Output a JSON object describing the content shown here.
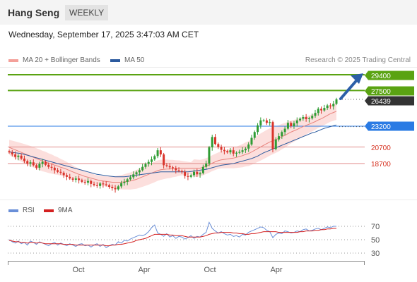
{
  "header": {
    "symbol": "Hang Seng",
    "period": "WEEKLY"
  },
  "datetime": "Wednesday, September 17, 2025 3:47:03 AM CET",
  "legend": [
    {
      "label": "MA 20 + Bollinger Bands",
      "color": "#f4a09a"
    },
    {
      "label": "MA 50",
      "color": "#2b5a9e"
    }
  ],
  "copyright": "Research © 2025 Trading Central",
  "rsi_legend": [
    {
      "label": "RSI",
      "color": "#6a8fd8"
    },
    {
      "label": "9MA",
      "color": "#d42020"
    }
  ],
  "chart_data": [
    {
      "type": "candlestick",
      "title": "Hang Seng",
      "x_tick_labels": [
        "Oct",
        "Apr",
        "Oct",
        "Apr"
      ],
      "price_labels": [
        {
          "value": "29400",
          "style": "green-badge",
          "color": "#5aa312"
        },
        {
          "value": "27500",
          "style": "green-badge",
          "color": "#5aa312"
        },
        {
          "value": "26439",
          "style": "current-price",
          "color": "#333333"
        },
        {
          "value": "23200",
          "style": "blue-badge",
          "color": "#2a7be4"
        },
        {
          "value": "20700",
          "style": "red-text",
          "color": "#d6301f"
        },
        {
          "value": "18700",
          "style": "red-text",
          "color": "#d6301f"
        }
      ],
      "levels": [
        {
          "value": 29400,
          "kind": "resistance-target",
          "color": "#5aa312"
        },
        {
          "value": 27500,
          "kind": "resistance-target",
          "color": "#5aa312"
        },
        {
          "value": 23200,
          "kind": "pivot",
          "color": "#2a7be4"
        },
        {
          "value": 20700,
          "kind": "support",
          "color": "#e08a88"
        },
        {
          "value": 18700,
          "kind": "support",
          "color": "#e08a88"
        }
      ],
      "current_price": 26439,
      "ylim": [
        15500,
        30200
      ],
      "arrow": "up",
      "closes": [
        20050,
        19800,
        19500,
        19650,
        19300,
        19000,
        18700,
        18850,
        18500,
        18200,
        18650,
        18900,
        18550,
        18300,
        18200,
        17900,
        17700,
        17600,
        17300,
        17100,
        16900,
        16750,
        16900,
        16700,
        16500,
        16400,
        16600,
        16250,
        16100,
        16000,
        16300,
        16200,
        16100,
        15900,
        15750,
        15600,
        15950,
        16350,
        16500,
        16800,
        17050,
        17400,
        17650,
        17900,
        18300,
        18650,
        18900,
        19200,
        19600,
        20300,
        19800,
        18500,
        18400,
        18250,
        18150,
        17900,
        17800,
        17700,
        17200,
        17100,
        17300,
        17700,
        17400,
        17550,
        18300,
        18700,
        20650,
        21900,
        21050,
        20700,
        20350,
        20200,
        20050,
        20300,
        19900,
        20000,
        20100,
        20300,
        20500,
        21000,
        21800,
        22500,
        23300,
        23900,
        23900,
        23600,
        23700,
        20450,
        21600,
        22000,
        22500,
        22900,
        23600,
        23200,
        23550,
        23900,
        24100,
        24300,
        24050,
        24150,
        24450,
        24800,
        25300,
        25100,
        25400,
        25700,
        25600,
        25900,
        26439
      ],
      "ma20": [
        20650,
        20500,
        20350,
        20200,
        20050,
        19900,
        19750,
        19600,
        19450,
        19300,
        19150,
        19000,
        18900,
        18750,
        18650,
        18500,
        18400,
        18250,
        18150,
        18000,
        17850,
        17700,
        17550,
        17400,
        17300,
        17150,
        17050,
        16950,
        16850,
        16750,
        16650,
        16600,
        16550,
        16500,
        16450,
        16450,
        16450,
        16450,
        16500,
        16550,
        16600,
        16700,
        16800,
        16950,
        17100,
        17250,
        17400,
        17550,
        17700,
        17850,
        17950,
        18000,
        18050,
        18050,
        18100,
        18100,
        18150,
        18150,
        18150,
        18150,
        18150,
        18150,
        18150,
        18150,
        18250,
        18400,
        18550,
        18750,
        18900,
        19050,
        19150,
        19200,
        19250,
        19300,
        19350,
        19450,
        19550,
        19650,
        19800,
        19900,
        20100,
        20300,
        20500,
        20700,
        20900,
        21100,
        21300,
        21450,
        21600,
        21750,
        21950,
        22100,
        22300,
        22500,
        22650,
        22800,
        23000,
        23150,
        23300,
        23450,
        23600,
        23750,
        23950,
        24100,
        24300,
        24500,
        24700,
        24850,
        25000
      ],
      "ma50": [
        20100,
        20050,
        20000,
        19950,
        19900,
        19800,
        19700,
        19600,
        19500,
        19400,
        19300,
        19200,
        19100,
        19000,
        18900,
        18800,
        18700,
        18600,
        18500,
        18400,
        18300,
        18200,
        18100,
        18000,
        17900,
        17800,
        17700,
        17600,
        17500,
        17400,
        17350,
        17300,
        17250,
        17200,
        17150,
        17100,
        17100,
        17100,
        17100,
        17150,
        17200,
        17250,
        17300,
        17350,
        17400,
        17450,
        17500,
        17550,
        17600,
        17650,
        17700,
        17700,
        17700,
        17700,
        17700,
        17700,
        17700,
        17700,
        17700,
        17700,
        17750,
        17800,
        17850,
        17900,
        17950,
        18000,
        18100,
        18200,
        18300,
        18400,
        18500,
        18550,
        18600,
        18650,
        18700,
        18800,
        18900,
        19000,
        19100,
        19200,
        19300,
        19450,
        19600,
        19800,
        20000,
        20150,
        20300,
        20450,
        20600,
        20750,
        20900,
        21050,
        21200,
        21350,
        21500,
        21650,
        21800,
        21950,
        22100,
        22250,
        22400,
        22500,
        22650,
        22800,
        22950,
        23050,
        23150,
        23250,
        23350
      ]
    },
    {
      "type": "line",
      "title": "RSI",
      "x_tick_labels": [
        "Oct",
        "Apr",
        "Oct",
        "Apr"
      ],
      "y_ticks": [
        70,
        50,
        30
      ],
      "ylim": [
        20,
        80
      ],
      "series": [
        {
          "name": "RSI",
          "color": "#6a8fd8",
          "values": [
            50,
            47,
            45,
            48,
            44,
            46,
            42,
            48,
            46,
            43,
            47,
            45,
            43,
            41,
            44,
            46,
            42,
            45,
            43,
            41,
            44,
            42,
            40,
            43,
            44,
            41,
            42,
            39,
            42,
            44,
            40,
            43,
            38,
            41,
            43,
            42,
            47,
            45,
            49,
            48,
            51,
            53,
            55,
            57,
            56,
            58,
            62,
            68,
            72,
            60,
            58,
            55,
            59,
            54,
            56,
            52,
            55,
            54,
            51,
            53,
            56,
            52,
            55,
            54,
            58,
            61,
            76,
            67,
            63,
            60,
            62,
            59,
            57,
            58,
            55,
            56,
            54,
            58,
            57,
            61,
            63,
            65,
            67,
            69,
            68,
            64,
            62,
            53,
            58,
            60,
            59,
            63,
            62,
            60,
            61,
            63,
            62,
            65,
            66,
            63,
            64,
            66,
            67,
            65,
            67,
            69,
            68,
            70,
            70
          ]
        },
        {
          "name": "9MA",
          "color": "#d42020",
          "values": [
            49,
            48,
            47,
            47,
            46,
            46,
            45,
            46,
            46,
            45,
            46,
            45,
            44,
            44,
            44,
            44,
            44,
            44,
            43,
            43,
            43,
            43,
            42,
            42,
            42,
            42,
            42,
            42,
            42,
            42,
            42,
            42,
            41,
            41,
            42,
            42,
            43,
            43,
            44,
            45,
            46,
            47,
            49,
            50,
            51,
            52,
            54,
            56,
            58,
            58,
            58,
            58,
            58,
            57,
            57,
            56,
            56,
            56,
            55,
            54,
            54,
            54,
            54,
            54,
            55,
            56,
            58,
            59,
            60,
            60,
            61,
            61,
            61,
            61,
            60,
            60,
            59,
            59,
            58,
            58,
            59,
            59,
            60,
            61,
            62,
            62,
            62,
            62,
            62,
            61,
            61,
            61,
            61,
            61,
            61,
            61,
            62,
            62,
            63,
            63,
            63,
            64,
            64,
            65,
            65,
            66,
            66,
            67,
            67
          ]
        }
      ]
    }
  ]
}
